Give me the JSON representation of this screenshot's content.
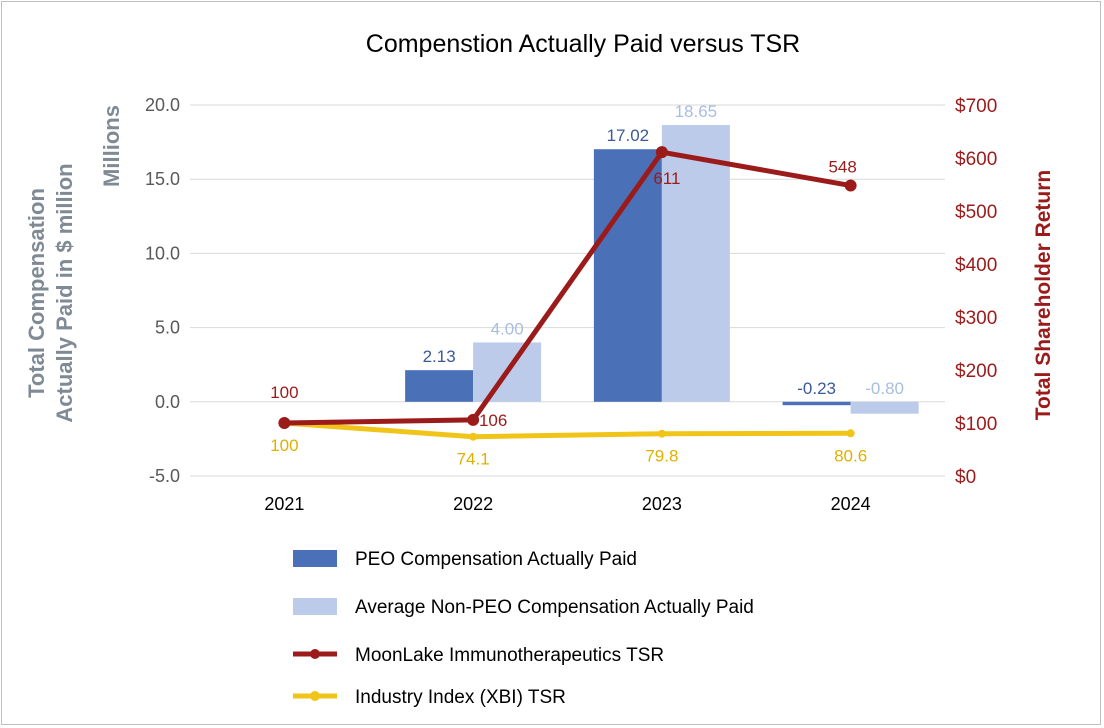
{
  "chart_data": {
    "type": "bar",
    "title": "Compenstion Actually Paid versus TSR",
    "categories": [
      "2021",
      "2022",
      "2023",
      "2024"
    ],
    "y_left": {
      "title_line1": "Total Compensation",
      "title_line2": "Actually Paid in $ million",
      "units_label": "Millions",
      "ticks": [
        "20.0",
        "15.0",
        "10.0",
        "5.0",
        "0.0",
        "-5.0"
      ],
      "ylim": [
        -5,
        20
      ]
    },
    "y_right": {
      "title": "Total Shareholder Return",
      "ticks": [
        "$700",
        "$600",
        "$500",
        "$400",
        "$300",
        "$200",
        "$100",
        "$0"
      ],
      "ylim": [
        0,
        700
      ]
    },
    "bar_series": [
      {
        "name": "PEO Compensation Actually Paid",
        "color": "#4a70b8",
        "values": [
          null,
          2.13,
          17.02,
          -0.23
        ],
        "labels": [
          "",
          "2.13",
          "17.02",
          "-0.23"
        ]
      },
      {
        "name": "Average Non-PEO Compensation Actually Paid",
        "color": "#bccbe9",
        "values": [
          null,
          4.0,
          18.65,
          -0.8
        ],
        "labels": [
          "",
          "4.00",
          "18.65",
          "-0.80"
        ]
      }
    ],
    "line_series": [
      {
        "name": "MoonLake Immunotherapeutics TSR",
        "color": "#9b1b1b",
        "values": [
          100,
          106,
          611,
          548
        ],
        "labels": [
          "100",
          "106",
          "611",
          "548"
        ]
      },
      {
        "name": "Industry Index (XBI) TSR",
        "color": "#f0c419",
        "label_color": "#e0b000",
        "values": [
          100,
          74.1,
          79.8,
          80.6
        ],
        "labels": [
          "100",
          "74.1",
          "79.8",
          "80.6"
        ]
      }
    ],
    "legend_position": "bottom",
    "grid": true
  }
}
